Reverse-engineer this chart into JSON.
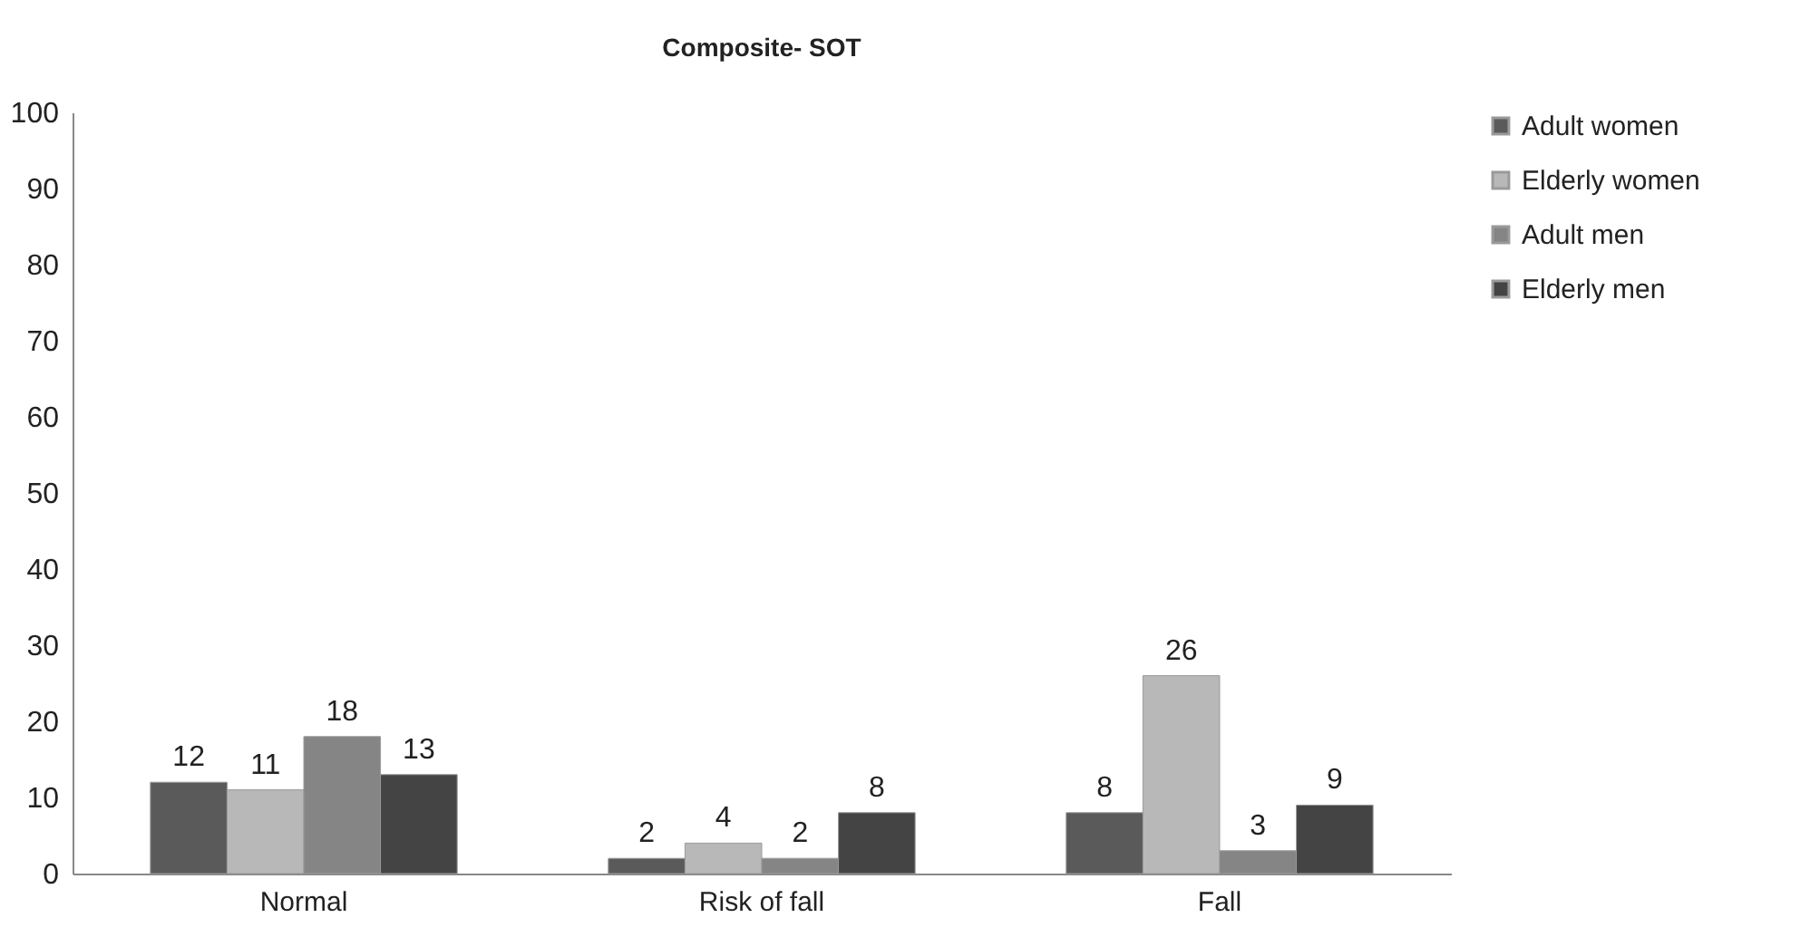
{
  "chart_data": {
    "type": "bar",
    "title": "Composite- SOT",
    "categories": [
      "Normal",
      "Risk of fall",
      "Fall"
    ],
    "series": [
      {
        "name": "Adult women",
        "color": "#5a5a5a",
        "values": [
          12,
          2,
          8
        ]
      },
      {
        "name": "Elderly women",
        "color": "#b8b8b8",
        "values": [
          11,
          4,
          26
        ]
      },
      {
        "name": "Adult men",
        "color": "#858585",
        "values": [
          18,
          2,
          3
        ]
      },
      {
        "name": "Elderly men",
        "color": "#444444",
        "values": [
          13,
          8,
          9
        ]
      }
    ],
    "ylim": [
      0,
      100
    ],
    "yticks": [
      0,
      10,
      20,
      30,
      40,
      50,
      60,
      70,
      80,
      90,
      100
    ],
    "grid": false,
    "legend": "right",
    "data_labels": true
  }
}
